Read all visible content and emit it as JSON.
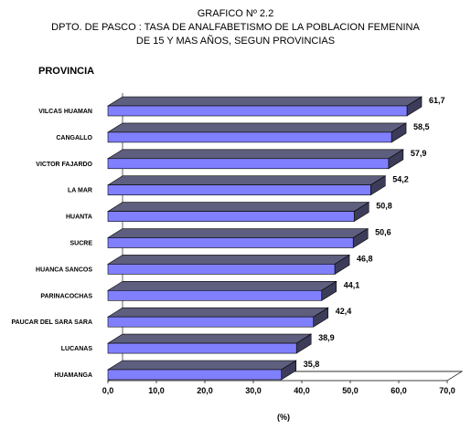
{
  "chart_data": {
    "type": "bar",
    "orientation": "horizontal",
    "title": [
      "GRAFICO Nº 2.2",
      "DPTO. DE PASCO : TASA DE ANALFABETISMO DE LA POBLACION FEMENINA",
      "DE 15 Y MAS AÑOS, SEGUN PROVINCIAS"
    ],
    "category_axis_title": "PROVINCIA",
    "xlabel": "(%)",
    "xlim": [
      0,
      70
    ],
    "xticks": [
      "0,0",
      "10,0",
      "20,0",
      "30,0",
      "40,0",
      "50,0",
      "60,0",
      "70,0"
    ],
    "categories": [
      "VILCAS HUAMAN",
      "CANGALLO",
      "VICTOR FAJARDO",
      "LA MAR",
      "HUANTA",
      "SUCRE",
      "HUANCA SANCOS",
      "PARINACOCHAS",
      "PAUCAR DEL SARA SARA",
      "LUCANAS",
      "HUAMANGA"
    ],
    "values": [
      61.7,
      58.5,
      57.9,
      54.2,
      50.8,
      50.6,
      46.8,
      44.1,
      42.4,
      38.9,
      35.8
    ],
    "value_labels": [
      "61,7",
      "58,5",
      "57,9",
      "54,2",
      "50,8",
      "50,6",
      "46,8",
      "44,1",
      "42,4",
      "38,9",
      "35,8"
    ],
    "colors": {
      "bar_front": "#8080ff",
      "bar_top": "#5e5e7e",
      "bar_side": "#3c3c5a"
    }
  }
}
